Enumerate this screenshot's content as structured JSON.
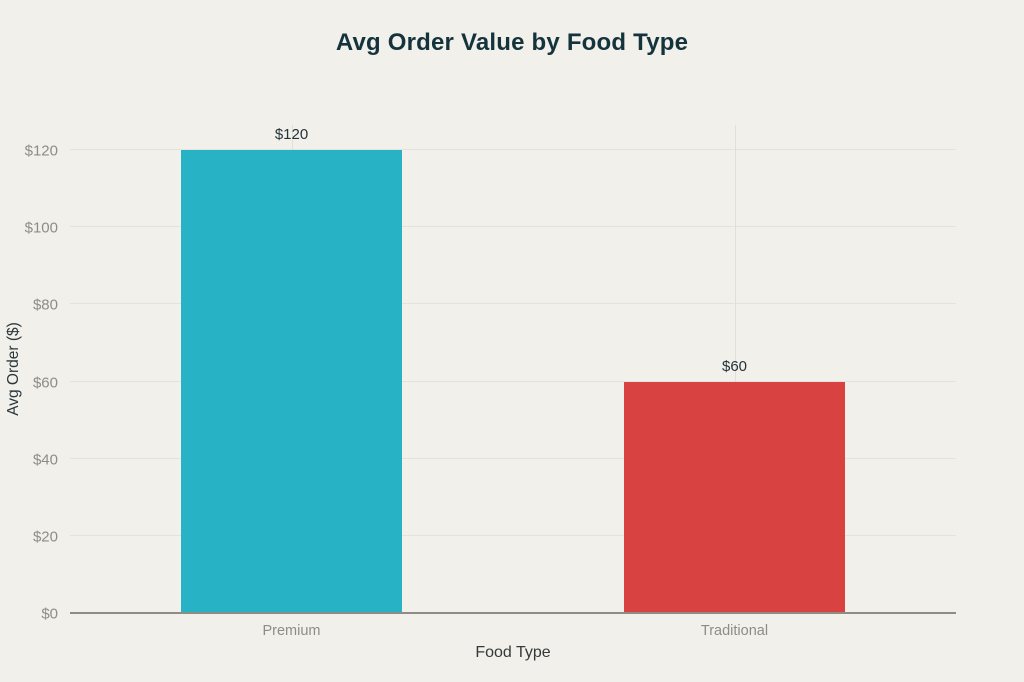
{
  "chart_data": {
    "type": "bar",
    "title": "Avg Order Value by Food Type",
    "categories": [
      "Premium",
      "Traditional"
    ],
    "values": [
      120,
      60
    ],
    "bar_labels": [
      "$120",
      "$60"
    ],
    "bar_colors": [
      "#28b2c6",
      "#d84342"
    ],
    "xlabel": "Food Type",
    "ylabel": "Avg Order ($)",
    "ylim": [
      0,
      126.5
    ],
    "yticks": [
      0,
      20,
      40,
      60,
      80,
      100,
      120
    ],
    "ytick_labels": [
      "$0",
      "$20",
      "$40",
      "$60",
      "$80",
      "$100",
      "$120"
    ],
    "grid": true,
    "legend": false,
    "bar_width_fraction": 0.5
  },
  "colors": {
    "background": "#f1f0ea",
    "title_text": "#14333d",
    "value_label_text": "#25333a",
    "tick_text": "#8d8d88",
    "axis_label_text": "#35393a",
    "gridline": "#e3e2db",
    "axis_line": "#8d8d86"
  }
}
